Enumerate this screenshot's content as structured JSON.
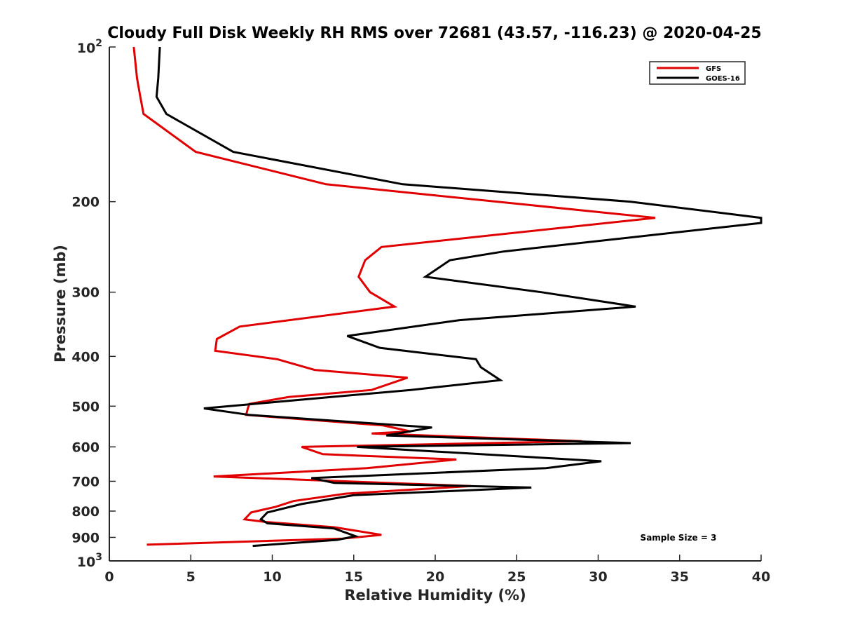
{
  "chart_data": {
    "type": "line",
    "title": "Cloudy Full Disk Weekly RH RMS over 72681 (43.57, -116.23) @ 2020-04-25",
    "xlabel": "Relative Humidity (%)",
    "ylabel": "Pressure (mb)",
    "xlim": [
      0,
      40
    ],
    "ylim": [
      100,
      1000
    ],
    "y_scale": "log",
    "y_reversed": true,
    "x_ticks": [
      0,
      5,
      10,
      15,
      20,
      25,
      30,
      35,
      40
    ],
    "x_tick_labels": [
      "0",
      "5",
      "10",
      "15",
      "20",
      "25",
      "30",
      "35",
      "40"
    ],
    "y_ticks": [
      200,
      300,
      400,
      500,
      600,
      700,
      800,
      900
    ],
    "y_tick_labels": [
      "200",
      "300",
      "400",
      "500",
      "600",
      "700",
      "800",
      "900"
    ],
    "y_end_labels": {
      "top": {
        "base": "10",
        "exp": "2"
      },
      "bottom": {
        "base": "10",
        "exp": "3"
      }
    },
    "grid": false,
    "legend_position": "top-right",
    "annotation": "Sample Size = 3",
    "series": [
      {
        "name": "GFS",
        "color": "#e00000",
        "points": [
          [
            1.5,
            100
          ],
          [
            1.7,
            115
          ],
          [
            1.9,
            125
          ],
          [
            2.1,
            135
          ],
          [
            5.3,
            160
          ],
          [
            13.3,
            185
          ],
          [
            33.5,
            215
          ],
          [
            16.7,
            245
          ],
          [
            15.7,
            260
          ],
          [
            15.3,
            280
          ],
          [
            16.0,
            300
          ],
          [
            17.5,
            320
          ],
          [
            8.0,
            350
          ],
          [
            6.6,
            370
          ],
          [
            6.5,
            390
          ],
          [
            10.3,
            405
          ],
          [
            12.6,
            425
          ],
          [
            18.3,
            440
          ],
          [
            16.1,
            465
          ],
          [
            11.0,
            480
          ],
          [
            8.6,
            495
          ],
          [
            8.5,
            505
          ],
          [
            8.4,
            520
          ],
          [
            16.8,
            545
          ],
          [
            18.5,
            560
          ],
          [
            16.1,
            565
          ],
          [
            29.0,
            585
          ],
          [
            11.8,
            600
          ],
          [
            13.1,
            620
          ],
          [
            21.3,
            635
          ],
          [
            15.8,
            660
          ],
          [
            6.4,
            685
          ],
          [
            22.2,
            715
          ],
          [
            14.5,
            740
          ],
          [
            11.3,
            765
          ],
          [
            10.2,
            785
          ],
          [
            8.7,
            805
          ],
          [
            8.3,
            830
          ],
          [
            9.6,
            840
          ],
          [
            13.8,
            860
          ],
          [
            16.7,
            890
          ],
          [
            14.3,
            905
          ],
          [
            2.3,
            930
          ]
        ]
      },
      {
        "name": "GOES-16",
        "color": "#000000",
        "points": [
          [
            3.1,
            100
          ],
          [
            3.0,
            115
          ],
          [
            2.9,
            125
          ],
          [
            3.5,
            135
          ],
          [
            7.6,
            160
          ],
          [
            18.0,
            185
          ],
          [
            32.0,
            200
          ],
          [
            40.0,
            215
          ],
          [
            40.0,
            220
          ],
          [
            24.2,
            250
          ],
          [
            20.9,
            260
          ],
          [
            19.4,
            280
          ],
          [
            26.5,
            300
          ],
          [
            32.3,
            320
          ],
          [
            21.5,
            340
          ],
          [
            14.6,
            365
          ],
          [
            16.6,
            385
          ],
          [
            22.5,
            405
          ],
          [
            22.8,
            420
          ],
          [
            24.0,
            445
          ],
          [
            18.5,
            465
          ],
          [
            12.0,
            485
          ],
          [
            5.8,
            505
          ],
          [
            8.6,
            520
          ],
          [
            19.8,
            550
          ],
          [
            17.0,
            570
          ],
          [
            32.0,
            590
          ],
          [
            15.2,
            600
          ],
          [
            30.2,
            640
          ],
          [
            26.8,
            660
          ],
          [
            12.4,
            690
          ],
          [
            13.8,
            705
          ],
          [
            25.9,
            720
          ],
          [
            15.0,
            745
          ],
          [
            11.8,
            775
          ],
          [
            9.7,
            805
          ],
          [
            9.3,
            830
          ],
          [
            9.7,
            845
          ],
          [
            13.8,
            865
          ],
          [
            15.1,
            895
          ],
          [
            14.0,
            910
          ],
          [
            8.8,
            935
          ]
        ]
      }
    ]
  }
}
